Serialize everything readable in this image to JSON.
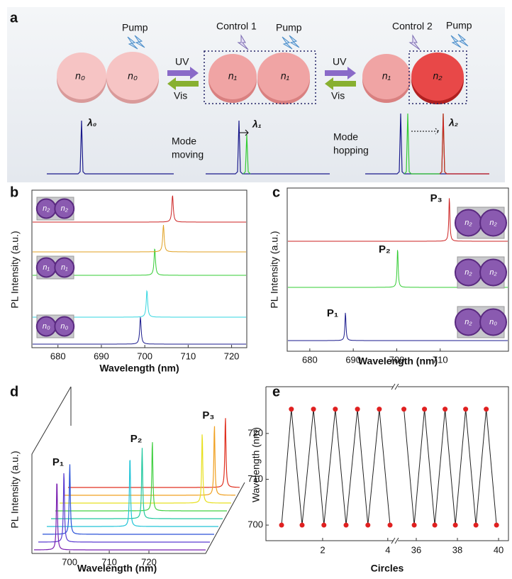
{
  "panel_a": {
    "label": "a",
    "pump": "Pump",
    "control1": "Control 1",
    "control2": "Control 2",
    "uv": "UV",
    "vis": "Vis",
    "n0": "n₀",
    "n1": "n₁",
    "n2": "n₂",
    "lambda0": "λ₀",
    "lambda1": "λ₁",
    "lambda2": "λ₂",
    "mode_moving": [
      "Mode",
      "moving"
    ],
    "mode_hopping": [
      "Mode",
      "hopping"
    ]
  },
  "chart_data": [
    {
      "type": "spectra",
      "label": "b",
      "xlabel": "Wavelength (nm)",
      "ylabel": "PL Intensity (a.u.)",
      "xlim": [
        674,
        723.5
      ],
      "xticks": [
        680,
        690,
        700,
        710,
        720
      ],
      "series": [
        {
          "color": "#1a1a8c",
          "peak": 699.0
        },
        {
          "color": "#33d6e0",
          "peak": 700.5
        },
        {
          "color": "#33cc33",
          "peak": 702.3
        },
        {
          "color": "#e0a020",
          "peak": 704.3
        },
        {
          "color": "#cc2222",
          "peak": 706.4
        }
      ],
      "insets": [
        [
          "n₂",
          "n₂"
        ],
        [
          "n₁",
          "n₁"
        ],
        [
          "n₀",
          "n₀"
        ]
      ]
    },
    {
      "type": "spectra",
      "label": "c",
      "xlabel": "Wavelength (nm)",
      "ylabel": "PL Intensity (a.u.)",
      "xlim": [
        674.8,
        725.7
      ],
      "xticks": [
        680,
        690,
        700,
        710
      ],
      "series": [
        {
          "name": "P₁",
          "color": "#1a1a8c",
          "peak": 688.2
        },
        {
          "name": "P₂",
          "color": "#33cc33",
          "peak": 700.2
        },
        {
          "name": "P₃",
          "color": "#cc2222",
          "peak": 712.1
        }
      ],
      "insets": [
        [
          "n₂",
          "n₂"
        ],
        [
          "n₂",
          "n₂"
        ],
        [
          "n₂",
          "n₀"
        ]
      ]
    },
    {
      "type": "waterfall",
      "label": "d",
      "xlabel": "Wavelength (nm)",
      "ylabel": "PL Intensity (a.u.)",
      "xlim": [
        690.5,
        734.3
      ],
      "xticks": [
        700,
        710,
        720
      ],
      "series": [
        {
          "color": "#7a1fb0",
          "peak": 696.8
        },
        {
          "color": "#5a3ad0",
          "peak": 697.5
        },
        {
          "color": "#2a52d8",
          "peak": 697.9
        },
        {
          "color": "#22c4d8",
          "peak": 712.0
        },
        {
          "color": "#22c8a0",
          "peak": 714.0
        },
        {
          "color": "#44d044",
          "peak": 715.5
        },
        {
          "color": "#e8e020",
          "peak": 727.0
        },
        {
          "color": "#f0a020",
          "peak": 729.0
        },
        {
          "color": "#e03020",
          "peak": 730.7
        }
      ],
      "peak_labels": [
        {
          "text": "P₁",
          "color": "#1a1a8c"
        },
        {
          "text": "P₂",
          "color": "#33cc33"
        },
        {
          "text": "P₃",
          "color": "#cc2222"
        }
      ]
    },
    {
      "type": "line",
      "label": "e",
      "xlabel": "Circles",
      "ylabel": "Wavelength (nm)",
      "ylim": [
        696.6,
        730.2
      ],
      "yticks": [
        700,
        710,
        720
      ],
      "color": "#e02020",
      "segments": [
        {
          "xlim": [
            0.26,
            4.2
          ],
          "xticks": [
            2,
            4
          ],
          "x": [
            0.74,
            1.04,
            1.37,
            1.72,
            2.04,
            2.39,
            2.72,
            3.07,
            3.39,
            3.74,
            4.07
          ],
          "values": [
            700,
            725.3,
            700,
            725.3,
            700,
            725.3,
            700,
            725.3,
            700,
            725.3,
            700
          ]
        },
        {
          "xlim": [
            35.07,
            40.48
          ],
          "xticks": [
            36,
            38,
            40
          ],
          "x": [
            35.4,
            35.9,
            36.4,
            36.9,
            37.4,
            37.9,
            38.4,
            38.9,
            39.4,
            39.9
          ],
          "values": [
            725.3,
            700,
            725.3,
            700,
            725.3,
            700,
            725.3,
            700,
            725.3,
            700
          ]
        }
      ]
    }
  ]
}
